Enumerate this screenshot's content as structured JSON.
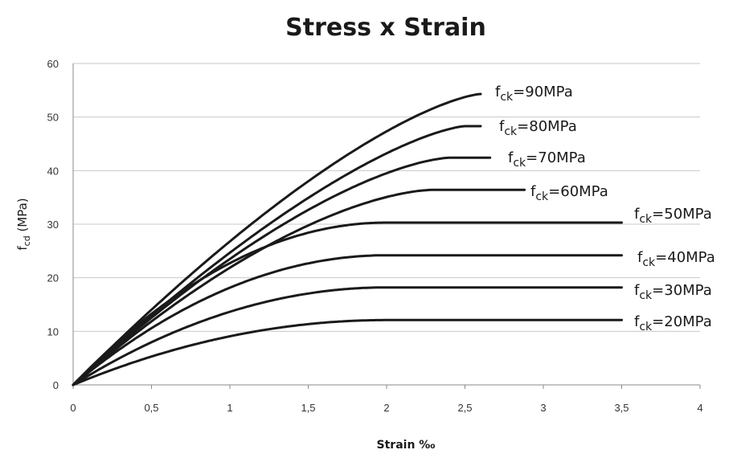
{
  "chart_data": {
    "type": "line",
    "title": "Stress x Strain",
    "xlabel": "Strain ‰",
    "ylabel": {
      "main": "f",
      "sub": "cd",
      "unit": " (MPa)"
    },
    "xlim": [
      0,
      4
    ],
    "ylim": [
      0,
      60
    ],
    "x_ticks": [
      0,
      0.5,
      1,
      1.5,
      2,
      2.5,
      3,
      3.5,
      4
    ],
    "x_tick_labels": [
      "0",
      "0,5",
      "1",
      "1,5",
      "2",
      "2,5",
      "3",
      "3,5",
      "4"
    ],
    "y_ticks": [
      0,
      10,
      20,
      30,
      40,
      50,
      60
    ],
    "y_tick_labels": [
      "0",
      "10",
      "20",
      "30",
      "40",
      "50",
      "60"
    ],
    "grid": "horizontal",
    "series": [
      {
        "label_main": "f",
        "label_sub": "ck",
        "label_rest": "=90MPa",
        "fck": 90,
        "eps_c2": 2.6,
        "eps_cu": 2.6,
        "peak": 54.3,
        "n": 1.4
      },
      {
        "label_main": "f",
        "label_sub": "ck",
        "label_rest": "=80MPa",
        "fck": 80,
        "eps_c2": 2.5,
        "eps_cu": 2.6,
        "peak": 48.3,
        "n": 1.4
      },
      {
        "label_main": "f",
        "label_sub": "ck",
        "label_rest": "=70MPa",
        "fck": 70,
        "eps_c2": 2.4,
        "eps_cu": 2.66,
        "peak": 42.4,
        "n": 1.5
      },
      {
        "label_main": "f",
        "label_sub": "ck",
        "label_rest": "=60MPa",
        "fck": 60,
        "eps_c2": 2.29,
        "eps_cu": 2.88,
        "peak": 36.4,
        "n": 1.6
      },
      {
        "label_main": "f",
        "label_sub": "ck",
        "label_rest": "=50MPa",
        "fck": 50,
        "eps_c2": 2.0,
        "eps_cu": 3.5,
        "peak": 30.3,
        "n": 2.0
      },
      {
        "label_main": "f",
        "label_sub": "ck",
        "label_rest": "=40MPa",
        "fck": 40,
        "eps_c2": 2.0,
        "eps_cu": 3.5,
        "peak": 24.2,
        "n": 2.0
      },
      {
        "label_main": "f",
        "label_sub": "ck",
        "label_rest": "=30MPa",
        "fck": 30,
        "eps_c2": 2.0,
        "eps_cu": 3.5,
        "peak": 18.2,
        "n": 2.0
      },
      {
        "label_main": "f",
        "label_sub": "ck",
        "label_rest": "=20MPa",
        "fck": 20,
        "eps_c2": 2.0,
        "eps_cu": 3.5,
        "peak": 12.1,
        "n": 2.0
      }
    ]
  }
}
